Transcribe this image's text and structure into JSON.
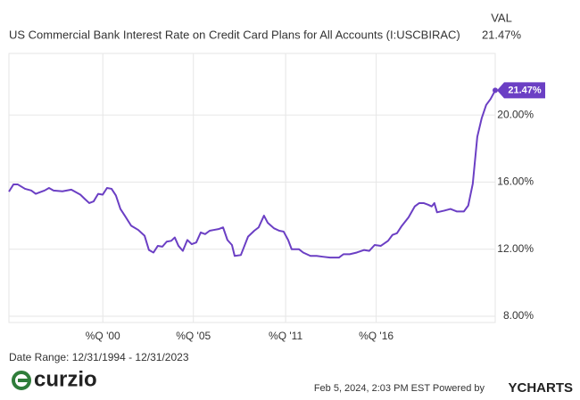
{
  "chart_data": {
    "type": "line",
    "title": "US Commercial Bank Interest Rate on Credit Card Plans for All Accounts (I:USCBIRAC)",
    "value_header": "VAL",
    "current_label": "21.47%",
    "date_range": "Date Range: 12/31/1994 - 12/31/2023",
    "footer": "Feb 5, 2024, 2:03 PM EST Powered by",
    "brand": "YCHARTS",
    "logo": "curzio",
    "x": [
      1995,
      1995.27,
      1995.53,
      1995.96,
      1996.33,
      1996.6,
      1996.86,
      1997.13,
      1997.39,
      1997.66,
      1998.19,
      1998.72,
      1999.26,
      1999.52,
      1999.79,
      2000.05,
      2000.32,
      2000.59,
      2000.85,
      2001.12,
      2001.38,
      2001.65,
      2001.91,
      2002.29,
      2002.71,
      2003.09,
      2003.35,
      2003.62,
      2003.88,
      2004.15,
      2004.41,
      2004.68,
      2004.89,
      2005.11,
      2005.37,
      2005.64,
      2005.9,
      2006.17,
      2006.44,
      2006.7,
      2006.97,
      2007.23,
      2007.5,
      2007.77,
      2008.03,
      2008.3,
      2008.46,
      2008.83,
      2009.26,
      2009.63,
      2009.89,
      2010.21,
      2010.43,
      2010.8,
      2011.12,
      2011.38,
      2011.65,
      2011.86,
      2012.29,
      2012.55,
      2012.98,
      2013.35,
      2013.72,
      2014.15,
      2014.68,
      2014.95,
      2015.32,
      2015.74,
      2016.17,
      2016.49,
      2016.81,
      2017.18,
      2017.61,
      2017.87,
      2018.14,
      2018.4,
      2018.83,
      2019.2,
      2019.47,
      2019.73,
      2020,
      2020.21,
      2020.37,
      2020.53,
      2020.96,
      2021.33,
      2021.7,
      2022.13,
      2022.39,
      2022.66,
      2022.93,
      2023.19,
      2023.46,
      2023.72,
      2024
    ],
    "series": [
      {
        "name": "I:USCBIRAC",
        "color": "#6b3fc4",
        "values": [
          15.43,
          15.86,
          15.86,
          15.6,
          15.5,
          15.3,
          15.4,
          15.5,
          15.65,
          15.5,
          15.45,
          15.55,
          15.25,
          15.0,
          14.75,
          14.85,
          15.3,
          15.25,
          15.65,
          15.6,
          15.2,
          14.4,
          14.0,
          13.4,
          13.15,
          12.8,
          11.95,
          11.8,
          12.2,
          12.15,
          12.45,
          12.5,
          12.7,
          12.2,
          11.9,
          12.55,
          12.3,
          12.4,
          13.0,
          12.9,
          13.1,
          13.15,
          13.2,
          13.3,
          12.55,
          12.25,
          11.6,
          11.65,
          12.75,
          13.1,
          13.3,
          14.0,
          13.58,
          13.25,
          13.1,
          13.05,
          12.55,
          12.0,
          12.0,
          11.8,
          11.6,
          11.6,
          11.55,
          11.5,
          11.5,
          11.7,
          11.7,
          11.8,
          11.95,
          11.9,
          12.25,
          12.2,
          12.5,
          12.85,
          12.95,
          13.35,
          13.9,
          14.55,
          14.75,
          14.75,
          14.65,
          14.55,
          14.75,
          14.2,
          14.3,
          14.4,
          14.25,
          14.25,
          14.6,
          15.9,
          18.7,
          19.8,
          20.6,
          20.95,
          21.47
        ]
      }
    ],
    "xlim": [
      1995,
      2024
    ],
    "xticks": [
      {
        "value": 2000.6,
        "label": "%Q '00"
      },
      {
        "value": 2006.0,
        "label": "%Q '05"
      },
      {
        "value": 2011.5,
        "label": "%Q '11"
      },
      {
        "value": 2016.9,
        "label": "%Q '16"
      }
    ],
    "ylim": [
      7.63,
      23.67
    ],
    "yticks": [
      {
        "value": 8,
        "label": "8.00%"
      },
      {
        "value": 12,
        "label": "12.00%"
      },
      {
        "value": 16,
        "label": "16.00%"
      },
      {
        "value": 20,
        "label": "20.00%"
      }
    ],
    "grid": true
  }
}
